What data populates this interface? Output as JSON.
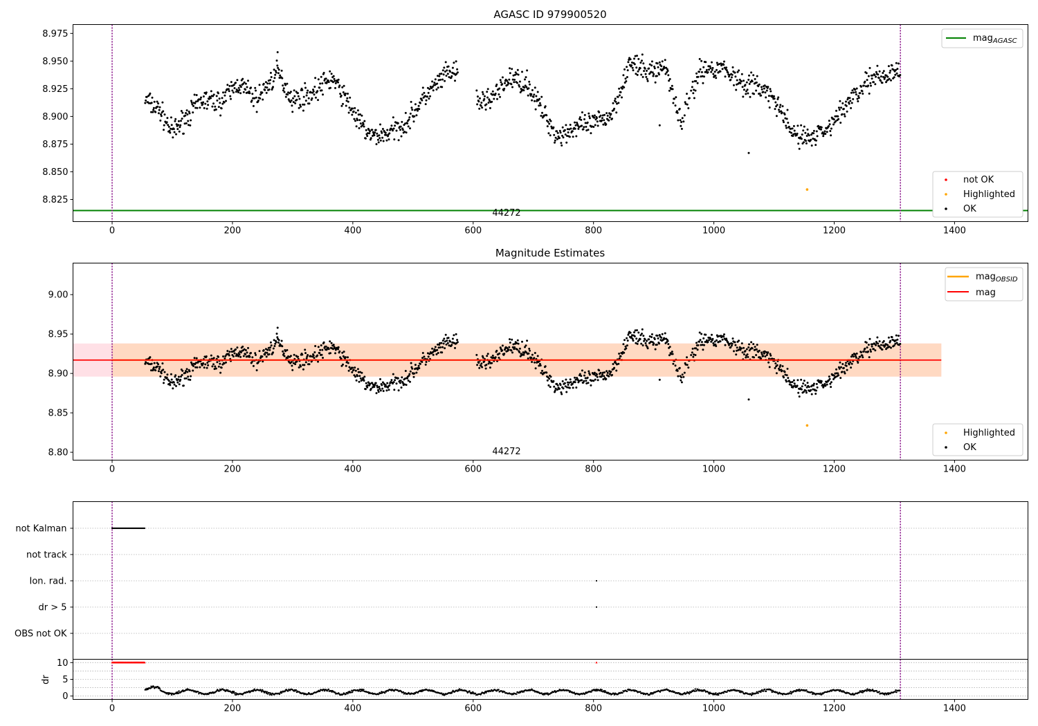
{
  "panels": {
    "top": {
      "title": "AGASC ID 979900520",
      "obsid_label": "44272",
      "y_ticks": [
        "8.825",
        "8.850",
        "8.875",
        "8.900",
        "8.925",
        "8.950",
        "8.975"
      ],
      "x_ticks": [
        "0",
        "200",
        "400",
        "600",
        "800",
        "1000",
        "1200",
        "1400"
      ],
      "legend_line": {
        "base": "mag",
        "sub": "AGASC"
      },
      "legend_points": [
        "not OK",
        "Highlighted",
        "OK"
      ]
    },
    "middle": {
      "title": "Magnitude Estimates",
      "obsid_label": "44272",
      "y_ticks": [
        "8.80",
        "8.85",
        "8.90",
        "8.95",
        "9.00"
      ],
      "x_ticks": [
        "0",
        "200",
        "400",
        "600",
        "800",
        "1000",
        "1200",
        "1400"
      ],
      "legend_lines": [
        {
          "base": "mag",
          "sub": "OBSID"
        },
        {
          "base": "mag",
          "sub": ""
        }
      ],
      "legend_points": [
        "Highlighted",
        "OK"
      ]
    },
    "flags": {
      "categories": [
        "not Kalman",
        "not track",
        "Ion. rad.",
        "dr > 5",
        "OBS not OK"
      ]
    },
    "dr": {
      "ylabel": "dr",
      "y_ticks": [
        "0",
        "5",
        "10"
      ],
      "x_ticks": [
        "0",
        "200",
        "400",
        "600",
        "800",
        "1000",
        "1200",
        "1400"
      ]
    }
  },
  "colors": {
    "ok": "#000000",
    "not_ok": "#ff0000",
    "highlighted": "#ffa500",
    "agasc_line": "#008000",
    "obsid_line": "#ffa500",
    "mag_line": "#ff0000",
    "band_pink": "#ffe0e6",
    "band_orange": "#ffd9c2",
    "vline": "#800080"
  },
  "chart_data": [
    {
      "type": "scatter",
      "title": "AGASC ID 979900520",
      "xlim": [
        -65,
        1522
      ],
      "ylim": [
        8.805,
        8.983
      ],
      "agasc_mag": 8.815,
      "observation_bounds": [
        0,
        1310
      ],
      "highlighted_point": [
        1155,
        8.834
      ],
      "envelope_points": [
        [
          55,
          8.915
        ],
        [
          80,
          8.905
        ],
        [
          100,
          8.885
        ],
        [
          120,
          8.898
        ],
        [
          150,
          8.915
        ],
        [
          180,
          8.913
        ],
        [
          210,
          8.93
        ],
        [
          240,
          8.915
        ],
        [
          275,
          8.94
        ],
        [
          300,
          8.915
        ],
        [
          330,
          8.92
        ],
        [
          365,
          8.935
        ],
        [
          395,
          8.91
        ],
        [
          410,
          8.895
        ],
        [
          430,
          8.882
        ],
        [
          460,
          8.885
        ],
        [
          490,
          8.895
        ],
        [
          520,
          8.918
        ],
        [
          560,
          8.94
        ],
        [
          590,
          8.935
        ],
        [
          610,
          8.912
        ],
        [
          640,
          8.92
        ],
        [
          660,
          8.935
        ],
        [
          690,
          8.93
        ],
        [
          720,
          8.9
        ],
        [
          740,
          8.882
        ],
        [
          770,
          8.89
        ],
        [
          800,
          8.893
        ],
        [
          830,
          8.902
        ],
        [
          860,
          8.948
        ],
        [
          890,
          8.94
        ],
        [
          920,
          8.945
        ],
        [
          945,
          8.895
        ],
        [
          975,
          8.94
        ],
        [
          1010,
          8.945
        ],
        [
          1050,
          8.93
        ],
        [
          1080,
          8.925
        ],
        [
          1100,
          8.915
        ],
        [
          1130,
          8.885
        ],
        [
          1160,
          8.88
        ],
        [
          1190,
          8.89
        ],
        [
          1220,
          8.91
        ],
        [
          1250,
          8.93
        ],
        [
          1280,
          8.935
        ],
        [
          1310,
          8.945
        ]
      ],
      "outliers": [
        [
          1058,
          8.867
        ],
        [
          910,
          8.892
        ],
        [
          275,
          8.958
        ]
      ],
      "series": [
        {
          "name": "not OK",
          "values": []
        },
        {
          "name": "Highlighted",
          "values": [
            [
              1155,
              8.834
            ]
          ]
        },
        {
          "name": "OK",
          "values": "dense time series following envelope_points"
        }
      ]
    },
    {
      "type": "scatter",
      "title": "Magnitude Estimates",
      "xlim": [
        -65,
        1522
      ],
      "ylim": [
        8.79,
        9.04
      ],
      "mag": 8.917,
      "mag_band": [
        8.896,
        8.938
      ],
      "band_x": [
        -65,
        1378
      ],
      "obsid_mag_span": [
        0,
        1310
      ],
      "highlighted_point": [
        1155,
        8.834
      ]
    },
    {
      "type": "scatter",
      "categories": [
        "not Kalman",
        "not track",
        "Ion. rad.",
        "dr > 5",
        "OBS not OK"
      ],
      "flag_spans": {
        "not Kalman": [
          [
            0,
            55
          ]
        ],
        "Ion. rad.": [
          [
            805,
            805
          ]
        ],
        "dr > 5": [
          [
            805,
            805
          ]
        ]
      }
    },
    {
      "type": "scatter",
      "ylabel": "dr",
      "ylim": [
        -1,
        11
      ],
      "dr_over_5": [
        [
          0,
          55
        ],
        [
          805,
          805
        ]
      ],
      "dr_level_clipped": 10,
      "typical_dr": [
        0.5,
        2.5
      ],
      "data_span": [
        55,
        1310
      ]
    }
  ]
}
